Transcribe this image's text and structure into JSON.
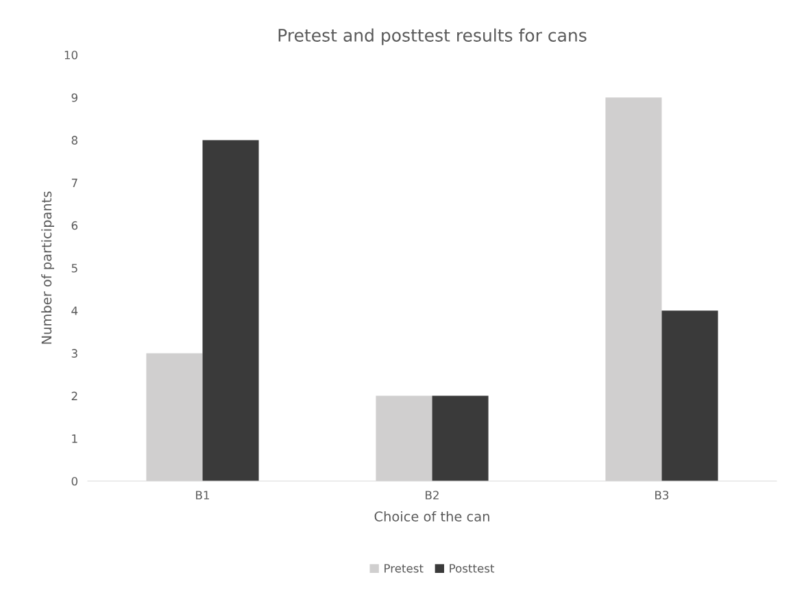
{
  "chart_data": {
    "type": "bar",
    "title": "Pretest and posttest results for cans",
    "xlabel": "Choice of the can",
    "ylabel": "Number of participants",
    "categories": [
      "B1",
      "B2",
      "B3"
    ],
    "series": [
      {
        "name": "Pretest",
        "color": "#d0cfcf",
        "values": [
          3,
          2,
          9
        ]
      },
      {
        "name": "Posttest",
        "color": "#3a3a3a",
        "values": [
          8,
          2,
          4
        ]
      }
    ],
    "ylim": [
      0,
      10
    ],
    "yticks": [
      0,
      1,
      2,
      3,
      4,
      5,
      6,
      7,
      8,
      9,
      10
    ],
    "grid": false,
    "legend": "bottom"
  }
}
